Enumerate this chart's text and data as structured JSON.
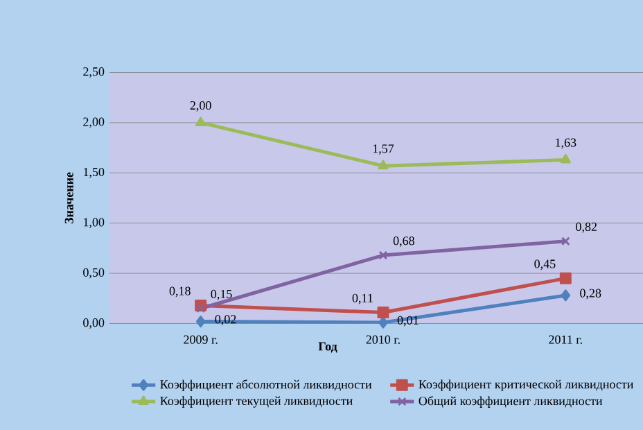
{
  "chart_data": {
    "type": "line",
    "xlabel": "Год",
    "ylabel": "Значение",
    "categories": [
      "2009 г.",
      "2010 г.",
      "2011 г."
    ],
    "series": [
      {
        "name": "Коэффициент абсолютной ликвидности",
        "color": "#4f81bd",
        "marker": "diamond",
        "values": [
          0.02,
          0.01,
          0.28
        ],
        "value_labels": [
          "0,02",
          "0,01",
          "0,28"
        ]
      },
      {
        "name": "Коэффициент критической ликвидности",
        "color": "#c0504d",
        "marker": "square",
        "values": [
          0.18,
          0.11,
          0.45
        ],
        "value_labels": [
          "0,18",
          "0,11",
          "0,45"
        ]
      },
      {
        "name": "Коэффициент текущей ликвидности",
        "color": "#9bbb59",
        "marker": "triangle",
        "values": [
          2.0,
          1.57,
          1.63
        ],
        "value_labels": [
          "2,00",
          "1,57",
          "1,63"
        ]
      },
      {
        "name": "Общий коэффициент ликвидности",
        "color": "#8064a2",
        "marker": "cross",
        "values": [
          0.15,
          0.68,
          0.82
        ],
        "value_labels": [
          "0,15",
          "0,68",
          "0,82"
        ]
      }
    ],
    "ylim": [
      0,
      2.5
    ],
    "yticks": [
      {
        "value": 0,
        "label": "0,00"
      },
      {
        "value": 0.5,
        "label": "0,50"
      },
      {
        "value": 1,
        "label": "1,00"
      },
      {
        "value": 1.5,
        "label": "1,50"
      },
      {
        "value": 2,
        "label": "2,00"
      },
      {
        "value": 2.5,
        "label": "2,50"
      }
    ],
    "grid": "y",
    "legend": "bottom",
    "line_style": "solid"
  }
}
